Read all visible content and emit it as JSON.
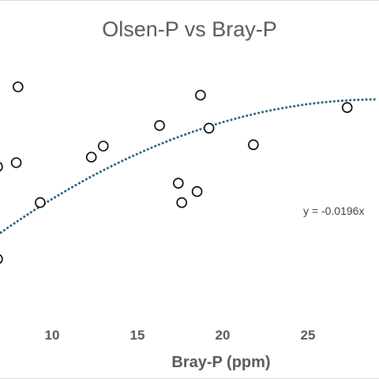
{
  "chart_data": {
    "type": "scatter",
    "title": "Olsen-P vs Bray-P",
    "xlabel": "Bray-P (ppm)",
    "ylabel": "",
    "x_ticks": [
      10,
      15,
      20,
      25
    ],
    "points": [
      {
        "x": 6.8,
        "y": 24.2
      },
      {
        "x": 7.9,
        "y": 24.5
      },
      {
        "x": 8.0,
        "y": 30.0
      },
      {
        "x": 9.3,
        "y": 21.6
      },
      {
        "x": 6.8,
        "y": 17.5
      },
      {
        "x": 12.3,
        "y": 24.9
      },
      {
        "x": 13.0,
        "y": 25.7
      },
      {
        "x": 16.3,
        "y": 27.2
      },
      {
        "x": 17.4,
        "y": 23.0
      },
      {
        "x": 17.6,
        "y": 21.6
      },
      {
        "x": 18.5,
        "y": 22.4
      },
      {
        "x": 18.7,
        "y": 29.4
      },
      {
        "x": 19.2,
        "y": 27.0
      },
      {
        "x": 21.8,
        "y": 25.8
      },
      {
        "x": 27.3,
        "y": 28.5
      }
    ],
    "trendline": {
      "type": "polynomial",
      "style": "dotted",
      "color": "#1f5f7a",
      "equation_text": "y = -0.0196x",
      "a": -0.0196,
      "b": 1.145,
      "c": 12.37
    },
    "marker": {
      "shape": "circle",
      "fill": "#ffffff",
      "stroke": "#000000"
    },
    "grid": false,
    "legend": "none"
  }
}
